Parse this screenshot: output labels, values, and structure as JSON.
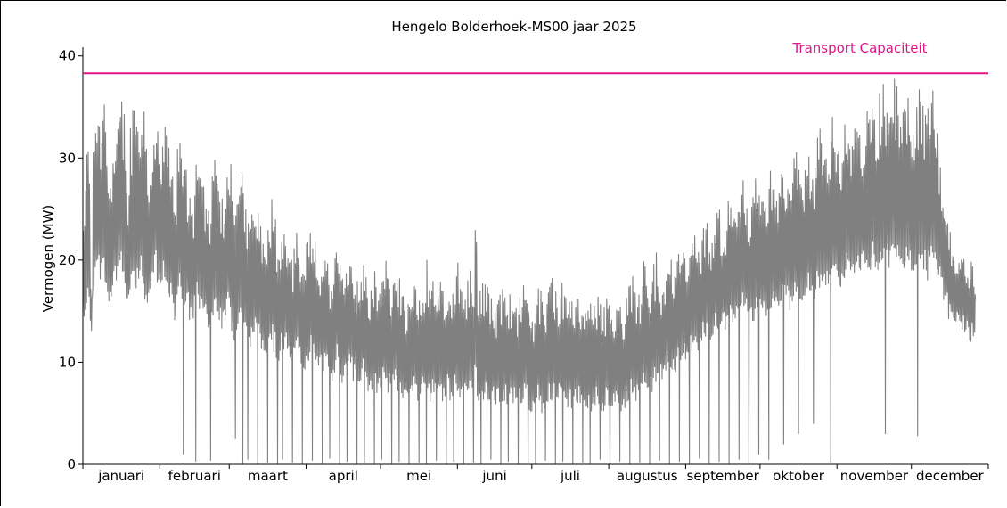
{
  "chart_data": {
    "type": "line",
    "title": "Hengelo Bolderhoek-MS00 jaar 2025",
    "xlabel": "",
    "ylabel": "Vermogen (MW)",
    "ylim": [
      0,
      40.5
    ],
    "yticks": [
      0,
      10,
      20,
      30,
      40
    ],
    "xlim": [
      0,
      365
    ],
    "months": [
      {
        "label": "januari",
        "start": 0,
        "days": 31
      },
      {
        "label": "februari",
        "start": 31,
        "days": 28
      },
      {
        "label": "maart",
        "start": 59,
        "days": 31
      },
      {
        "label": "april",
        "start": 90,
        "days": 30
      },
      {
        "label": "mei",
        "start": 120,
        "days": 31
      },
      {
        "label": "juni",
        "start": 151,
        "days": 30
      },
      {
        "label": "juli",
        "start": 181,
        "days": 31
      },
      {
        "label": "augustus",
        "start": 212,
        "days": 31
      },
      {
        "label": "september",
        "start": 243,
        "days": 30
      },
      {
        "label": "oktober",
        "start": 273,
        "days": 31
      },
      {
        "label": "november",
        "start": 304,
        "days": 30
      },
      {
        "label": "december",
        "start": 334,
        "days": 31
      }
    ],
    "series": [
      {
        "color": "#808080",
        "daily_peak": [
          25,
          32,
          31,
          18,
          33,
          34,
          35,
          34,
          36,
          33,
          28,
          29,
          34,
          33,
          35,
          36,
          35,
          30,
          27,
          33,
          35,
          34,
          33,
          34,
          35,
          31,
          28,
          32,
          34,
          35,
          33,
          32,
          33,
          34,
          32,
          31,
          29,
          25,
          31,
          32,
          31,
          30,
          28,
          27,
          26,
          30,
          31,
          30,
          29,
          27,
          25,
          26,
          29,
          31,
          30,
          27,
          26,
          28,
          30,
          30,
          27,
          25,
          27,
          29,
          30,
          27,
          24,
          23,
          26,
          27,
          26,
          25,
          23,
          22,
          24,
          25,
          26,
          24,
          21,
          22,
          23,
          24,
          23,
          21,
          20,
          22,
          24,
          22,
          20,
          19,
          22,
          23,
          24,
          22,
          21,
          20,
          22,
          21,
          20,
          18,
          19,
          21,
          22,
          20,
          19,
          18,
          19,
          20,
          21,
          19,
          18,
          17,
          19,
          20,
          19,
          17,
          18,
          19,
          18,
          17,
          19,
          20,
          21,
          19,
          17,
          18,
          20,
          19,
          18,
          17,
          16,
          18,
          17,
          19,
          18,
          17,
          18,
          19,
          20,
          18,
          17,
          18,
          17,
          19,
          18,
          17,
          18,
          19,
          18,
          17,
          19,
          20,
          18,
          17,
          18,
          19,
          20,
          19,
          24,
          18,
          17,
          18,
          19,
          18,
          17,
          17,
          16,
          18,
          17,
          18,
          17,
          16,
          17,
          18,
          17,
          16,
          17,
          18,
          19,
          18,
          16,
          15,
          17,
          18,
          17,
          16,
          15,
          17,
          18,
          19,
          17,
          16,
          17,
          18,
          17,
          16,
          17,
          16,
          17,
          18,
          17,
          16,
          15,
          16,
          17,
          16,
          16,
          17,
          16,
          15,
          16,
          17,
          16,
          15,
          16,
          17,
          16,
          16,
          15,
          17,
          18,
          19,
          17,
          16,
          17,
          19,
          20,
          18,
          17,
          18,
          20,
          21,
          19,
          18,
          19,
          21,
          22,
          20,
          19,
          20,
          22,
          23,
          21,
          20,
          21,
          23,
          24,
          22,
          21,
          22,
          24,
          25,
          23,
          22,
          23,
          25,
          26,
          24,
          23,
          24,
          26,
          27,
          25,
          24,
          25,
          27,
          28,
          26,
          25,
          26,
          27,
          28,
          29,
          27,
          26,
          27,
          28,
          29,
          27,
          26,
          28,
          29,
          30,
          28,
          27,
          28,
          30,
          31,
          29,
          28,
          29,
          31,
          32,
          30,
          29,
          30,
          32,
          33,
          31,
          30,
          31,
          33,
          34,
          32,
          31,
          32,
          34,
          35,
          33,
          32,
          33,
          35,
          36,
          34,
          33,
          34,
          36,
          37,
          35,
          34,
          35,
          37,
          38,
          36,
          35,
          36,
          38,
          38,
          37,
          36,
          37,
          38,
          37,
          36,
          35,
          36,
          37,
          38,
          37,
          35,
          36,
          37,
          38,
          36,
          33,
          30,
          27,
          25,
          24,
          23,
          22,
          21,
          20,
          21,
          22,
          21,
          20,
          19,
          20,
          18
        ],
        "daily_min": [
          14,
          15,
          16,
          13,
          17,
          18,
          19,
          18,
          19,
          17,
          15,
          16,
          17,
          18,
          19,
          20,
          18,
          16,
          15,
          17,
          18,
          17,
          18,
          19,
          17,
          16,
          15,
          17,
          18,
          19,
          17,
          17,
          18,
          17,
          16,
          16,
          15,
          14,
          16,
          17,
          16,
          15,
          15,
          14,
          14,
          15,
          16,
          15,
          15,
          14,
          13,
          13,
          14,
          15,
          15,
          14,
          13,
          14,
          15,
          15,
          13,
          12,
          13,
          14,
          14,
          13,
          12,
          11,
          12,
          13,
          12,
          12,
          11,
          11,
          11,
          12,
          12,
          11,
          10,
          10,
          11,
          11,
          11,
          10,
          9,
          10,
          11,
          10,
          9,
          9,
          10,
          10,
          11,
          10,
          9,
          9,
          10,
          9,
          9,
          8,
          8,
          9,
          10,
          9,
          8,
          8,
          8,
          9,
          9,
          8,
          8,
          7,
          8,
          9,
          8,
          7,
          7,
          8,
          7,
          7,
          7,
          8,
          8,
          7,
          7,
          7,
          8,
          7,
          7,
          6,
          6,
          7,
          6,
          7,
          7,
          6,
          6,
          7,
          7,
          6,
          6,
          7,
          6,
          7,
          6,
          6,
          6,
          7,
          6,
          6,
          7,
          7,
          6,
          6,
          6,
          7,
          7,
          6,
          8,
          6,
          6,
          6,
          7,
          6,
          6,
          6,
          5,
          6,
          6,
          6,
          6,
          5,
          6,
          6,
          6,
          5,
          6,
          6,
          6,
          6,
          5,
          5,
          6,
          6,
          6,
          5,
          5,
          6,
          6,
          6,
          6,
          5,
          6,
          6,
          6,
          5,
          6,
          5,
          6,
          6,
          6,
          5,
          5,
          5,
          6,
          5,
          5,
          6,
          5,
          5,
          5,
          6,
          5,
          5,
          5,
          6,
          5,
          5,
          5,
          6,
          6,
          7,
          6,
          6,
          6,
          7,
          7,
          7,
          7,
          7,
          8,
          8,
          8,
          8,
          8,
          9,
          9,
          9,
          9,
          9,
          10,
          10,
          10,
          10,
          10,
          11,
          11,
          11,
          11,
          11,
          12,
          12,
          12,
          12,
          12,
          13,
          13,
          13,
          13,
          13,
          14,
          14,
          14,
          14,
          14,
          14,
          15,
          15,
          14,
          14,
          14,
          15,
          15,
          15,
          14,
          14,
          15,
          15,
          16,
          15,
          15,
          15,
          16,
          16,
          16,
          15,
          16,
          16,
          17,
          16,
          16,
          16,
          17,
          17,
          17,
          16,
          17,
          17,
          18,
          17,
          17,
          17,
          18,
          18,
          18,
          17,
          18,
          18,
          19,
          18,
          18,
          18,
          19,
          19,
          19,
          18,
          19,
          19,
          20,
          19,
          19,
          19,
          20,
          20,
          20,
          19,
          20,
          20,
          20,
          19,
          19,
          19,
          20,
          19,
          19,
          18,
          19,
          19,
          20,
          19,
          18,
          19,
          20,
          20,
          19,
          18,
          17,
          16,
          15,
          14,
          14,
          14,
          13,
          13,
          13,
          13,
          13,
          12,
          12,
          12,
          12,
          11
        ],
        "drops": [
          [
            40,
            1.0
          ],
          [
            45,
            0.3
          ],
          [
            51,
            0.4
          ],
          [
            61,
            2.5
          ],
          [
            64,
            0.0
          ],
          [
            66,
            0.5
          ],
          [
            70,
            0.0
          ],
          [
            74,
            0.2
          ],
          [
            78,
            0.0
          ],
          [
            80,
            0.5
          ],
          [
            84,
            0.2
          ],
          [
            88,
            0.0
          ],
          [
            92,
            0.4
          ],
          [
            96,
            0.0
          ],
          [
            99,
            0.6
          ],
          [
            103,
            0.0
          ],
          [
            106,
            0.3
          ],
          [
            110,
            0.0
          ],
          [
            113,
            0.2
          ],
          [
            117,
            0.0
          ],
          [
            120,
            0.5
          ],
          [
            124,
            0.0
          ],
          [
            127,
            0.3
          ],
          [
            131,
            0.0
          ],
          [
            135,
            0.2
          ],
          [
            138,
            0.0
          ],
          [
            142,
            0.4
          ],
          [
            146,
            0.0
          ],
          [
            149,
            0.3
          ],
          [
            153,
            0.0
          ],
          [
            157,
            0.2
          ],
          [
            160,
            0.0
          ],
          [
            164,
            0.5
          ],
          [
            168,
            0.0
          ],
          [
            171,
            0.3
          ],
          [
            175,
            0.0
          ],
          [
            179,
            0.2
          ],
          [
            182,
            0.0
          ],
          [
            186,
            0.4
          ],
          [
            190,
            0.0
          ],
          [
            193,
            0.3
          ],
          [
            197,
            0.0
          ],
          [
            201,
            0.2
          ],
          [
            204,
            0.0
          ],
          [
            208,
            0.5
          ],
          [
            212,
            0.0
          ],
          [
            216,
            0.3
          ],
          [
            220,
            0.0
          ],
          [
            224,
            0.2
          ],
          [
            228,
            0.0
          ],
          [
            232,
            0.4
          ],
          [
            236,
            0.0
          ],
          [
            240,
            0.3
          ],
          [
            244,
            0.0
          ],
          [
            248,
            0.6
          ],
          [
            252,
            0.0
          ],
          [
            256,
            0.3
          ],
          [
            260,
            0.0
          ],
          [
            264,
            0.5
          ],
          [
            268,
            0.0
          ],
          [
            272,
            1.0
          ],
          [
            276,
            0.5
          ],
          [
            282,
            2.0
          ],
          [
            288,
            3.0
          ],
          [
            294,
            4.0
          ],
          [
            301,
            0.2
          ],
          [
            323,
            3.0
          ],
          [
            336,
            2.8
          ]
        ]
      }
    ],
    "capacity": {
      "label": "Transport Capaciteit",
      "value": 38.3,
      "color": "#e0158a"
    }
  }
}
